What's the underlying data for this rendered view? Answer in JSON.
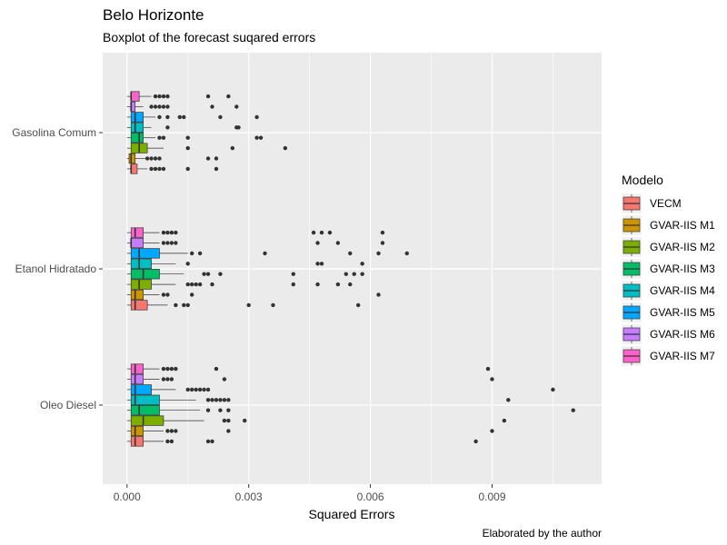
{
  "chart_data": {
    "type": "boxplot",
    "orientation": "horizontal",
    "title": "Belo Horizonte",
    "subtitle": "Boxplot of the forecast suqared errors",
    "xlabel": "Squared Errors",
    "ylabel": "",
    "caption": "Elaborated by the author",
    "xlim": [
      -0.0006,
      0.0117
    ],
    "x_ticks": [
      0.0,
      0.003,
      0.006,
      0.009
    ],
    "x_tick_labels": [
      "0.000",
      "0.003",
      "0.006",
      "0.009"
    ],
    "categories": [
      "Gasolina Comum",
      "Etanol Hidratado",
      "Oleo Diesel"
    ],
    "grid": true,
    "legend": {
      "title": "Modelo",
      "position": "right",
      "entries": [
        "VECM",
        "GVAR-IIS M1",
        "GVAR-IIS M2",
        "GVAR-IIS M3",
        "GVAR-IIS M4",
        "GVAR-IIS M5",
        "GVAR-IIS M6",
        "GVAR-IIS M7"
      ],
      "colors": [
        "#F8766D",
        "#CD9600",
        "#7CAE00",
        "#00BE67",
        "#00BFC4",
        "#00A9FF",
        "#C77CFF",
        "#FF61CC"
      ]
    },
    "series": [
      {
        "category": "Gasolina Comum",
        "boxes": [
          {
            "q1": 0.0001,
            "median": 0.0001,
            "q3": 0.00025,
            "whisker_high": 0.0005,
            "outliers": [
              0.0006,
              0.0007,
              0.0008,
              0.0009,
              0.0015,
              0.0022
            ]
          },
          {
            "q1": 5e-05,
            "median": 0.0001,
            "q3": 0.0002,
            "whisker_high": 0.00045,
            "outliers": [
              0.0005,
              0.0006,
              0.0007,
              0.0008,
              0.002,
              0.0022
            ]
          },
          {
            "q1": 0.0001,
            "median": 0.0003,
            "q3": 0.0005,
            "whisker_high": 0.0009,
            "outliers": [
              0.0015,
              0.0026,
              0.0039
            ]
          },
          {
            "q1": 0.0001,
            "median": 0.0003,
            "q3": 0.0004,
            "whisker_high": 0.0007,
            "outliers": [
              0.0008,
              0.0009,
              0.0015,
              0.0032,
              0.0033
            ]
          },
          {
            "q1": 0.0001,
            "median": 0.0002,
            "q3": 0.0004,
            "whisker_high": 0.0006,
            "outliers": [
              0.001,
              0.0027,
              0.00275
            ]
          },
          {
            "q1": 0.0001,
            "median": 0.0002,
            "q3": 0.0004,
            "whisker_high": 0.0007,
            "outliers": [
              0.0008,
              0.001,
              0.0013,
              0.0014,
              0.0023,
              0.0032
            ]
          },
          {
            "q1": 0.0001,
            "median": 0.0001,
            "q3": 0.0002,
            "whisker_high": 0.0004,
            "outliers": [
              0.0006,
              0.0007,
              0.0008,
              0.0009,
              0.001,
              0.0021,
              0.0027
            ]
          },
          {
            "q1": 0.0001,
            "median": 0.0001,
            "q3": 0.0003,
            "whisker_high": 0.0006,
            "outliers": [
              0.0007,
              0.0008,
              0.0009,
              0.001,
              0.002,
              0.0025
            ]
          }
        ]
      },
      {
        "category": "Etanol Hidratado",
        "boxes": [
          {
            "q1": 0.0001,
            "median": 0.0002,
            "q3": 0.0005,
            "whisker_high": 0.001,
            "outliers": [
              0.0012,
              0.0014,
              0.0015,
              0.003,
              0.0036,
              0.0057
            ]
          },
          {
            "q1": 0.0001,
            "median": 0.0002,
            "q3": 0.0004,
            "whisker_high": 0.0008,
            "outliers": [
              0.0009,
              0.001,
              0.0016,
              0.0062
            ]
          },
          {
            "q1": 0.0001,
            "median": 0.0003,
            "q3": 0.0006,
            "whisker_high": 0.0012,
            "outliers": [
              0.0015,
              0.0016,
              0.0017,
              0.0018,
              0.0021,
              0.0041,
              0.0047,
              0.0052,
              0.0055
            ]
          },
          {
            "q1": 0.0001,
            "median": 0.0004,
            "q3": 0.0008,
            "whisker_high": 0.0014,
            "outliers": [
              0.0019,
              0.002,
              0.0023,
              0.0041,
              0.0054,
              0.0056,
              0.0058
            ]
          },
          {
            "q1": 0.0001,
            "median": 0.0003,
            "q3": 0.0006,
            "whisker_high": 0.0012,
            "outliers": [
              0.0015,
              0.0047,
              0.0048,
              0.0058
            ]
          },
          {
            "q1": 0.0001,
            "median": 0.0003,
            "q3": 0.0008,
            "whisker_high": 0.0015,
            "outliers": [
              0.0016,
              0.0018,
              0.0034,
              0.0055,
              0.0062,
              0.0069
            ]
          },
          {
            "q1": 0.0001,
            "median": 0.0001,
            "q3": 0.0004,
            "whisker_high": 0.0008,
            "outliers": [
              0.0009,
              0.001,
              0.0011,
              0.0012,
              0.0047,
              0.0052,
              0.0063
            ]
          },
          {
            "q1": 0.0001,
            "median": 0.0002,
            "q3": 0.0004,
            "whisker_high": 0.0008,
            "outliers": [
              0.0009,
              0.001,
              0.0011,
              0.0012,
              0.0046,
              0.0048,
              0.005,
              0.0063
            ]
          }
        ]
      },
      {
        "category": "Oleo Diesel",
        "boxes": [
          {
            "q1": 0.0001,
            "median": 0.0002,
            "q3": 0.0004,
            "whisker_high": 0.0009,
            "outliers": [
              0.001,
              0.0011,
              0.002,
              0.0021,
              0.0086
            ]
          },
          {
            "q1": 0.0001,
            "median": 0.0002,
            "q3": 0.0004,
            "whisker_high": 0.0009,
            "outliers": [
              0.001,
              0.0011,
              0.0012,
              0.0025,
              0.009
            ]
          },
          {
            "q1": 0.0001,
            "median": 0.0004,
            "q3": 0.0009,
            "whisker_high": 0.0019,
            "outliers": [
              0.0024,
              0.0025,
              0.0029,
              0.0093
            ]
          },
          {
            "q1": 0.0001,
            "median": 0.0003,
            "q3": 0.0008,
            "whisker_high": 0.0018,
            "outliers": [
              0.002,
              0.0023,
              0.0025,
              0.011
            ]
          },
          {
            "q1": 0.0001,
            "median": 0.0002,
            "q3": 0.0008,
            "whisker_high": 0.0017,
            "outliers": [
              0.002,
              0.0021,
              0.0022,
              0.0023,
              0.0024,
              0.0025,
              0.0094
            ]
          },
          {
            "q1": 0.0001,
            "median": 0.0002,
            "q3": 0.0006,
            "whisker_high": 0.0012,
            "outliers": [
              0.0015,
              0.0016,
              0.0017,
              0.0018,
              0.0019,
              0.002,
              0.0105
            ]
          },
          {
            "q1": 0.0001,
            "median": 0.0002,
            "q3": 0.0004,
            "whisker_high": 0.0008,
            "outliers": [
              0.0009,
              0.001,
              0.0011,
              0.0024,
              0.009
            ]
          },
          {
            "q1": 0.0001,
            "median": 0.0002,
            "q3": 0.0004,
            "whisker_high": 0.0008,
            "outliers": [
              0.0009,
              0.001,
              0.0011,
              0.0012,
              0.0022,
              0.0089
            ]
          }
        ]
      }
    ]
  }
}
